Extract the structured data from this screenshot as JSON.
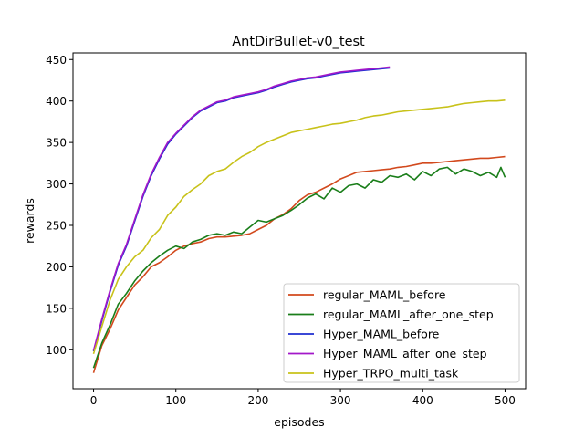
{
  "chart_data": {
    "type": "line",
    "title": "AntDirBullet-v0_test",
    "xlabel": "episodes",
    "ylabel": "rewards",
    "xlim": [
      -25,
      525
    ],
    "ylim": [
      53,
      458
    ],
    "xticks": [
      0,
      100,
      200,
      300,
      400,
      500
    ],
    "yticks": [
      100,
      150,
      200,
      250,
      300,
      350,
      400,
      450
    ],
    "grid": false,
    "legend_position": "lower-right",
    "series": [
      {
        "name": "regular_MAML_before",
        "color": "#d2491d",
        "x": [
          0,
          10,
          20,
          30,
          40,
          50,
          60,
          70,
          80,
          90,
          100,
          110,
          120,
          130,
          140,
          150,
          160,
          170,
          180,
          190,
          200,
          210,
          220,
          230,
          240,
          250,
          260,
          270,
          280,
          290,
          300,
          310,
          320,
          330,
          340,
          350,
          360,
          370,
          380,
          390,
          400,
          410,
          420,
          430,
          440,
          450,
          460,
          470,
          480,
          490,
          500
        ],
        "y": [
          72,
          105,
          125,
          148,
          163,
          178,
          188,
          200,
          205,
          212,
          220,
          225,
          228,
          230,
          234,
          236,
          236,
          237,
          238,
          240,
          245,
          250,
          258,
          263,
          270,
          280,
          287,
          290,
          295,
          300,
          306,
          310,
          314,
          315,
          316,
          317,
          318,
          320,
          321,
          323,
          325,
          325,
          326,
          327,
          328,
          329,
          330,
          331,
          331,
          332,
          333
        ]
      },
      {
        "name": "regular_MAML_after_one_step",
        "color": "#1a7e1a",
        "x": [
          0,
          10,
          20,
          30,
          40,
          50,
          60,
          70,
          80,
          90,
          100,
          110,
          120,
          130,
          140,
          150,
          160,
          170,
          180,
          190,
          200,
          210,
          220,
          230,
          240,
          250,
          260,
          270,
          280,
          290,
          300,
          310,
          320,
          330,
          340,
          350,
          360,
          370,
          380,
          390,
          400,
          410,
          420,
          430,
          440,
          450,
          460,
          470,
          480,
          490,
          495,
          500
        ],
        "y": [
          78,
          108,
          130,
          155,
          168,
          183,
          195,
          205,
          213,
          220,
          225,
          222,
          230,
          233,
          238,
          240,
          238,
          242,
          240,
          248,
          256,
          254,
          258,
          262,
          268,
          275,
          283,
          288,
          282,
          295,
          290,
          298,
          300,
          295,
          305,
          302,
          310,
          308,
          312,
          305,
          315,
          310,
          318,
          320,
          312,
          318,
          315,
          310,
          314,
          308,
          320,
          308
        ]
      },
      {
        "name": "Hyper_MAML_before",
        "color": "#1f2ed1",
        "x": [
          0,
          10,
          20,
          30,
          40,
          50,
          60,
          70,
          80,
          90,
          100,
          110,
          120,
          130,
          140,
          150,
          160,
          170,
          180,
          190,
          200,
          210,
          220,
          230,
          240,
          250,
          260,
          270,
          280,
          290,
          300,
          310,
          320,
          330,
          340,
          350,
          360
        ],
        "y": [
          98,
          135,
          170,
          202,
          225,
          255,
          285,
          310,
          330,
          348,
          360,
          370,
          380,
          388,
          393,
          398,
          400,
          404,
          406,
          408,
          410,
          413,
          417,
          420,
          423,
          425,
          427,
          428,
          430,
          432,
          434,
          435,
          436,
          437,
          438,
          439,
          440
        ]
      },
      {
        "name": "Hyper_MAML_after_one_step",
        "color": "#a318c9",
        "x": [
          0,
          10,
          20,
          30,
          40,
          50,
          60,
          70,
          80,
          90,
          100,
          110,
          120,
          130,
          140,
          150,
          160,
          170,
          180,
          190,
          200,
          210,
          220,
          230,
          240,
          250,
          260,
          270,
          280,
          290,
          300,
          310,
          320,
          330,
          340,
          350,
          360
        ],
        "y": [
          99,
          137,
          172,
          204,
          227,
          257,
          287,
          312,
          332,
          350,
          361,
          371,
          381,
          389,
          394,
          399,
          401,
          405,
          407,
          409,
          411,
          414,
          418,
          421,
          424,
          426,
          428,
          429,
          431,
          433,
          435,
          436,
          437,
          438,
          439,
          440,
          441
        ]
      },
      {
        "name": "Hyper_TRPO_multi_task",
        "color": "#c8c21a",
        "x": [
          0,
          10,
          20,
          30,
          40,
          50,
          60,
          70,
          80,
          90,
          100,
          110,
          120,
          130,
          140,
          150,
          160,
          170,
          180,
          190,
          200,
          210,
          220,
          230,
          240,
          250,
          260,
          270,
          280,
          290,
          300,
          310,
          320,
          330,
          340,
          350,
          360,
          370,
          380,
          390,
          400,
          410,
          420,
          430,
          440,
          450,
          460,
          470,
          480,
          490,
          500
        ],
        "y": [
          95,
          128,
          160,
          185,
          200,
          212,
          220,
          235,
          245,
          262,
          272,
          285,
          293,
          300,
          310,
          315,
          318,
          326,
          333,
          338,
          345,
          350,
          354,
          358,
          362,
          364,
          366,
          368,
          370,
          372,
          373,
          375,
          377,
          380,
          382,
          383,
          385,
          387,
          388,
          389,
          390,
          391,
          392,
          393,
          395,
          397,
          398,
          399,
          400,
          400,
          401
        ]
      }
    ]
  }
}
